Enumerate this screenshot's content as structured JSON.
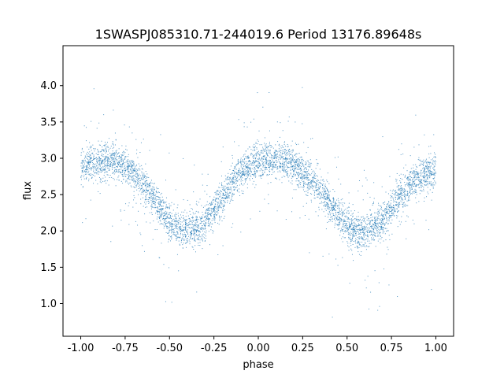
{
  "chart_data": {
    "type": "scatter",
    "title": "1SWASPJ085310.71-244019.6 Period 13176.89648s",
    "xlabel": "phase",
    "ylabel": "flux",
    "xlim": [
      -1.1,
      1.1
    ],
    "ylim": [
      0.55,
      4.55
    ],
    "xticks": [
      "-1.00",
      "-0.75",
      "-0.50",
      "-0.25",
      "0.00",
      "0.25",
      "0.50",
      "0.75",
      "1.00"
    ],
    "xtick_values": [
      -1.0,
      -0.75,
      -0.5,
      -0.25,
      0.0,
      0.25,
      0.5,
      0.75,
      1.0
    ],
    "yticks": [
      "1.0",
      "1.5",
      "2.0",
      "2.5",
      "3.0",
      "3.5",
      "4.0"
    ],
    "ytick_values": [
      1.0,
      1.5,
      2.0,
      2.5,
      3.0,
      3.5,
      4.0
    ],
    "grid": false,
    "series": [
      {
        "color": "#1f77b4",
        "x": [
          -1.0,
          -0.95,
          -0.9,
          -0.85,
          -0.8,
          -0.75,
          -0.7,
          -0.65,
          -0.6,
          -0.55,
          -0.5,
          -0.45,
          -0.4,
          -0.35,
          -0.3,
          -0.25,
          -0.2,
          -0.15,
          -0.1,
          -0.05,
          0.0,
          0.05,
          0.1,
          0.15,
          0.2,
          0.25,
          0.3,
          0.35,
          0.4,
          0.45,
          0.5,
          0.55,
          0.6,
          0.65,
          0.7,
          0.75,
          0.8,
          0.85,
          0.9,
          0.95,
          1.0
        ],
        "y": [
          2.85,
          2.93,
          2.97,
          2.98,
          2.95,
          2.88,
          2.78,
          2.65,
          2.48,
          2.3,
          2.13,
          2.03,
          2.0,
          2.03,
          2.12,
          2.28,
          2.48,
          2.66,
          2.8,
          2.9,
          2.95,
          2.98,
          2.98,
          2.95,
          2.9,
          2.8,
          2.68,
          2.55,
          2.4,
          2.22,
          2.07,
          2.0,
          2.0,
          2.05,
          2.15,
          2.3,
          2.47,
          2.62,
          2.73,
          2.8,
          2.85
        ]
      }
    ]
  }
}
